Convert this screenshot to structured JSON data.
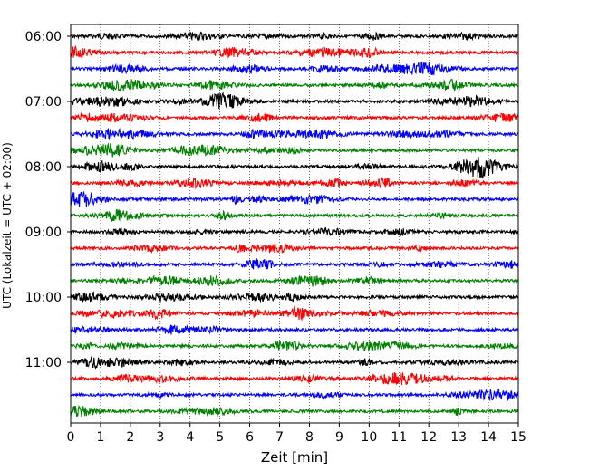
{
  "chart_data": {
    "type": "line",
    "xlabel": "Zeit  [min]",
    "ylabel": "UTC (Lokalzeit = UTC + 02:00)",
    "xlim": [
      0,
      15
    ],
    "x_ticks": [
      0,
      1,
      2,
      3,
      4,
      5,
      6,
      7,
      8,
      9,
      10,
      11,
      12,
      13,
      14,
      15
    ],
    "y_tick_labels": [
      "06:00",
      "07:00",
      "08:00",
      "09:00",
      "10:00",
      "11:00"
    ],
    "trace_interval_min": 15,
    "trace_colors_cycle": [
      "#000000",
      "#ff0000",
      "#0000ff",
      "#008000"
    ],
    "grid": "vertical dotted at each minute",
    "traces": [
      {
        "start": "06:00",
        "color": "#000000"
      },
      {
        "start": "06:15",
        "color": "#ff0000"
      },
      {
        "start": "06:30",
        "color": "#0000ff"
      },
      {
        "start": "06:45",
        "color": "#008000"
      },
      {
        "start": "07:00",
        "color": "#000000"
      },
      {
        "start": "07:15",
        "color": "#ff0000"
      },
      {
        "start": "07:30",
        "color": "#0000ff"
      },
      {
        "start": "07:45",
        "color": "#008000"
      },
      {
        "start": "08:00",
        "color": "#000000"
      },
      {
        "start": "08:15",
        "color": "#ff0000"
      },
      {
        "start": "08:30",
        "color": "#0000ff"
      },
      {
        "start": "08:45",
        "color": "#008000"
      },
      {
        "start": "09:00",
        "color": "#000000"
      },
      {
        "start": "09:15",
        "color": "#ff0000"
      },
      {
        "start": "09:30",
        "color": "#0000ff"
      },
      {
        "start": "09:45",
        "color": "#008000"
      },
      {
        "start": "10:00",
        "color": "#000000"
      },
      {
        "start": "10:15",
        "color": "#ff0000"
      },
      {
        "start": "10:30",
        "color": "#0000ff"
      },
      {
        "start": "10:45",
        "color": "#008000"
      },
      {
        "start": "11:00",
        "color": "#000000"
      },
      {
        "start": "11:15",
        "color": "#ff0000"
      },
      {
        "start": "11:30",
        "color": "#0000ff"
      },
      {
        "start": "11:45",
        "color": "#008000"
      }
    ]
  }
}
